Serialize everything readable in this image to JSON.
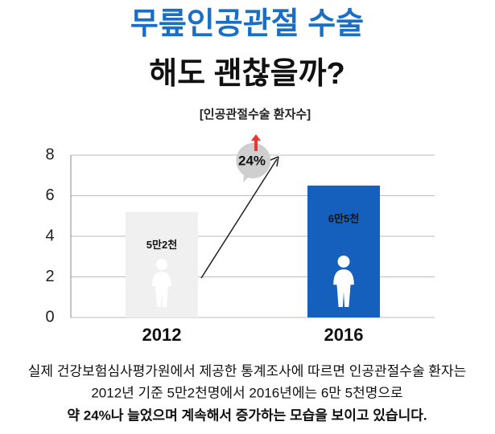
{
  "headline": {
    "line1": "무릎인공관절 수술",
    "line2": "해도 괜찮을까?"
  },
  "chart_data": {
    "type": "bar",
    "title": "[인공관절수술 환자수]",
    "categories": [
      "2012",
      "2016"
    ],
    "values": [
      5.2,
      6.5
    ],
    "value_labels": [
      "5만2천",
      "6만5천"
    ],
    "colors": [
      "#f0f0f0",
      "#1560bd"
    ],
    "ylim": [
      0,
      8
    ],
    "yticks": [
      0,
      2,
      4,
      6,
      8
    ],
    "grid": true,
    "annotation": "24%"
  },
  "footer": {
    "lines": [
      "실제 건강보험심사평가원에서 제공한 통계조사에 따르면 인공관절수술 환자는",
      "2012년 기준 5만2천명에서 2016년에는 6만 5천명으로",
      "약 24%나 늘었으며 계속해서 증가하는 모습을 보이고 있습니다."
    ]
  }
}
